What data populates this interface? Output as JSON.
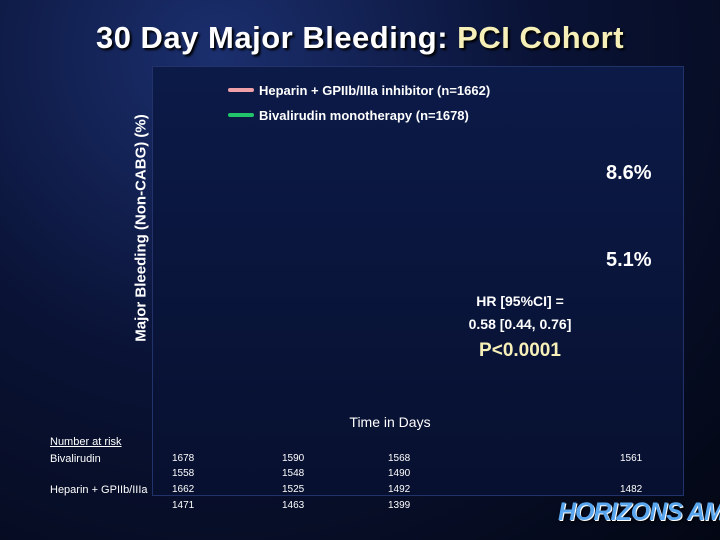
{
  "title": {
    "main": "30 Day Major Bleeding: ",
    "highlight": "PCI Cohort"
  },
  "chart_data": {
    "type": "line",
    "title": "30 Day Major Bleeding: PCI Cohort",
    "xlabel": "Time in Days",
    "ylabel": "Major Bleeding (Non-CABG) (%)",
    "series": [
      {
        "name": "Heparin + GPIIb/IIIa inhibitor (n=1662)",
        "color": "#f0a0a8",
        "end_value": 8.6,
        "end_label": "8.6%"
      },
      {
        "name": "Bivalirudin monotherapy (n=1678)",
        "color": "#22c46a",
        "end_value": 5.1,
        "end_label": "5.1%"
      }
    ],
    "annotations": {
      "hr_line1": "HR [95%CI] =",
      "hr_line2": "0.58 [0.44, 0.76]",
      "p_value": "P<0.0001"
    },
    "grid": false,
    "legend_position": "top"
  },
  "risk_table": {
    "title": "Number at risk",
    "rows": [
      {
        "label": "Bivalirudin",
        "values": [
          "1678",
          "1558",
          "1590",
          "1548",
          "1568",
          "1490",
          "1561"
        ]
      },
      {
        "label": "Heparin + GPIIb/IIIa",
        "values": [
          "1662",
          "1471",
          "1525",
          "1463",
          "1492",
          "1399",
          "1482"
        ]
      }
    ]
  },
  "logo_text": "HORIZONS AMI"
}
